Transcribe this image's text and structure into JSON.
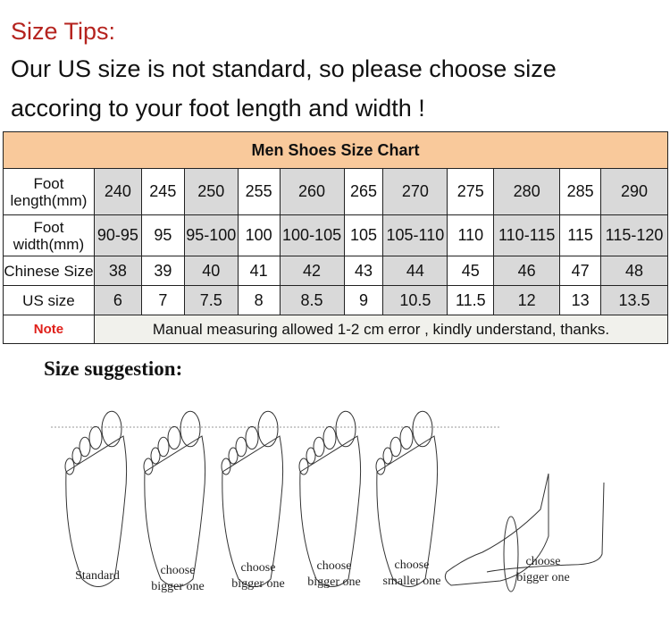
{
  "tips": {
    "title": "Size Tips:",
    "line1": "Our US size is not standard, so please choose size",
    "line2": "accoring to your foot length and width !"
  },
  "chart": {
    "title": "Men Shoes Size Chart",
    "rows": [
      {
        "label": "Foot length(mm)",
        "values": [
          "240",
          "245",
          "250",
          "255",
          "260",
          "265",
          "270",
          "275",
          "280",
          "285",
          "290"
        ]
      },
      {
        "label": "Foot width(mm)",
        "values": [
          "90-95",
          "95",
          "95-100",
          "100",
          "100-105",
          "105",
          "105-110",
          "110",
          "110-115",
          "115",
          "115-120"
        ]
      },
      {
        "label": "Chinese Size",
        "values": [
          "38",
          "39",
          "40",
          "41",
          "42",
          "43",
          "44",
          "45",
          "46",
          "47",
          "48"
        ]
      },
      {
        "label": "US size",
        "values": [
          "6",
          "7",
          "7.5",
          "8",
          "8.5",
          "9",
          "10.5",
          "11.5",
          "12",
          "13",
          "13.5"
        ]
      }
    ],
    "note_label": "Note",
    "note_text": "Manual measuring allowed 1-2 cm error , kindly understand, thanks.",
    "colors": {
      "header": "#f9c99b",
      "shaded": "#d9d9d9",
      "note": "#e0201a",
      "title": "#b5231e"
    }
  },
  "suggestion": {
    "title": "Size suggestion:",
    "captions": [
      {
        "l1": "Standard",
        "l2": ""
      },
      {
        "l1": "choose",
        "l2": "bigger one"
      },
      {
        "l1": "choose",
        "l2": "bigger one"
      },
      {
        "l1": "choose",
        "l2": "bigger one"
      },
      {
        "l1": "choose",
        "l2": "smaller one"
      },
      {
        "l1": "choose",
        "l2": "bigger one"
      }
    ]
  }
}
